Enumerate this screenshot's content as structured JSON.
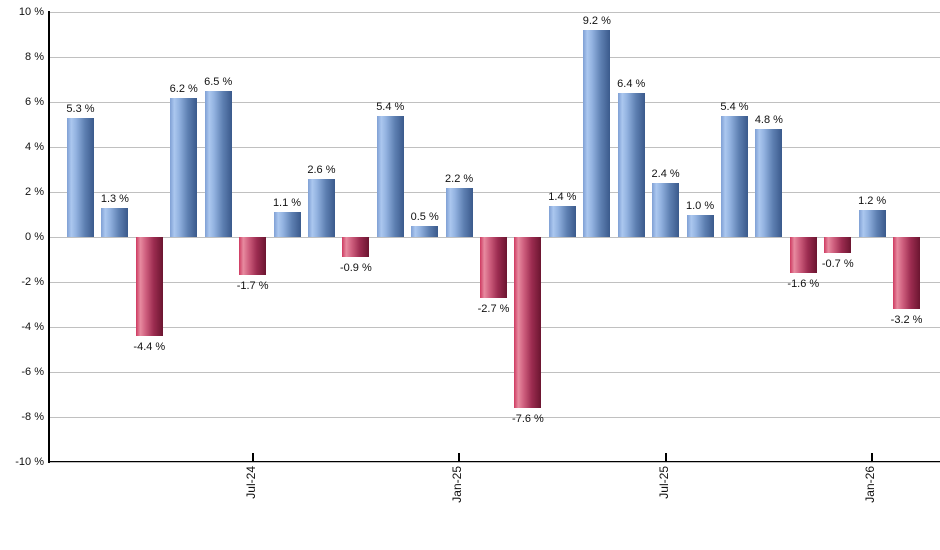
{
  "chart_data": {
    "type": "bar",
    "title": "",
    "values": [
      5.3,
      1.3,
      -4.4,
      6.2,
      6.5,
      -1.7,
      1.1,
      2.6,
      -0.9,
      5.4,
      0.5,
      2.2,
      -2.7,
      -7.6,
      1.4,
      9.2,
      6.4,
      2.4,
      1.0,
      5.4,
      4.8,
      -1.6,
      -0.7,
      1.2,
      -3.2
    ],
    "bar_labels": [
      "5.3 %",
      "1.3 %",
      "-4.4 %",
      "6.2 %",
      "6.5 %",
      "-1.7 %",
      "1.1 %",
      "2.6 %",
      "-0.9 %",
      "5.4 %",
      "0.5 %",
      "2.2 %",
      "-2.7 %",
      "-7.6 %",
      "1.4 %",
      "9.2 %",
      "6.4 %",
      "2.4 %",
      "1.0 %",
      "5.4 %",
      "4.8 %",
      "-1.6 %",
      "-0.7 %",
      "1.2 %",
      "-3.2 %"
    ],
    "x_ticks": [
      {
        "bar_index": 5,
        "label": "Jul-24"
      },
      {
        "bar_index": 11,
        "label": "Jan-25"
      },
      {
        "bar_index": 17,
        "label": "Jul-25"
      },
      {
        "bar_index": 23,
        "label": "Jan-26"
      }
    ],
    "y_tick_labels": [
      "10 %",
      "8 %",
      "6 %",
      "4 %",
      "2 %",
      "0 %",
      "-2 %",
      "-4 %",
      "-6 %",
      "-8 %",
      "-10 %"
    ],
    "ylim": [
      -10,
      10
    ],
    "y_step": 2,
    "grid": true,
    "legend": "none",
    "xlabel": "",
    "ylabel": "",
    "colors": {
      "positive_bar": "#6d93cc",
      "negative_bar": "#c64d6e",
      "gridline": "#c0c0c0",
      "axis": "#000000",
      "label_text": "#111111"
    }
  }
}
